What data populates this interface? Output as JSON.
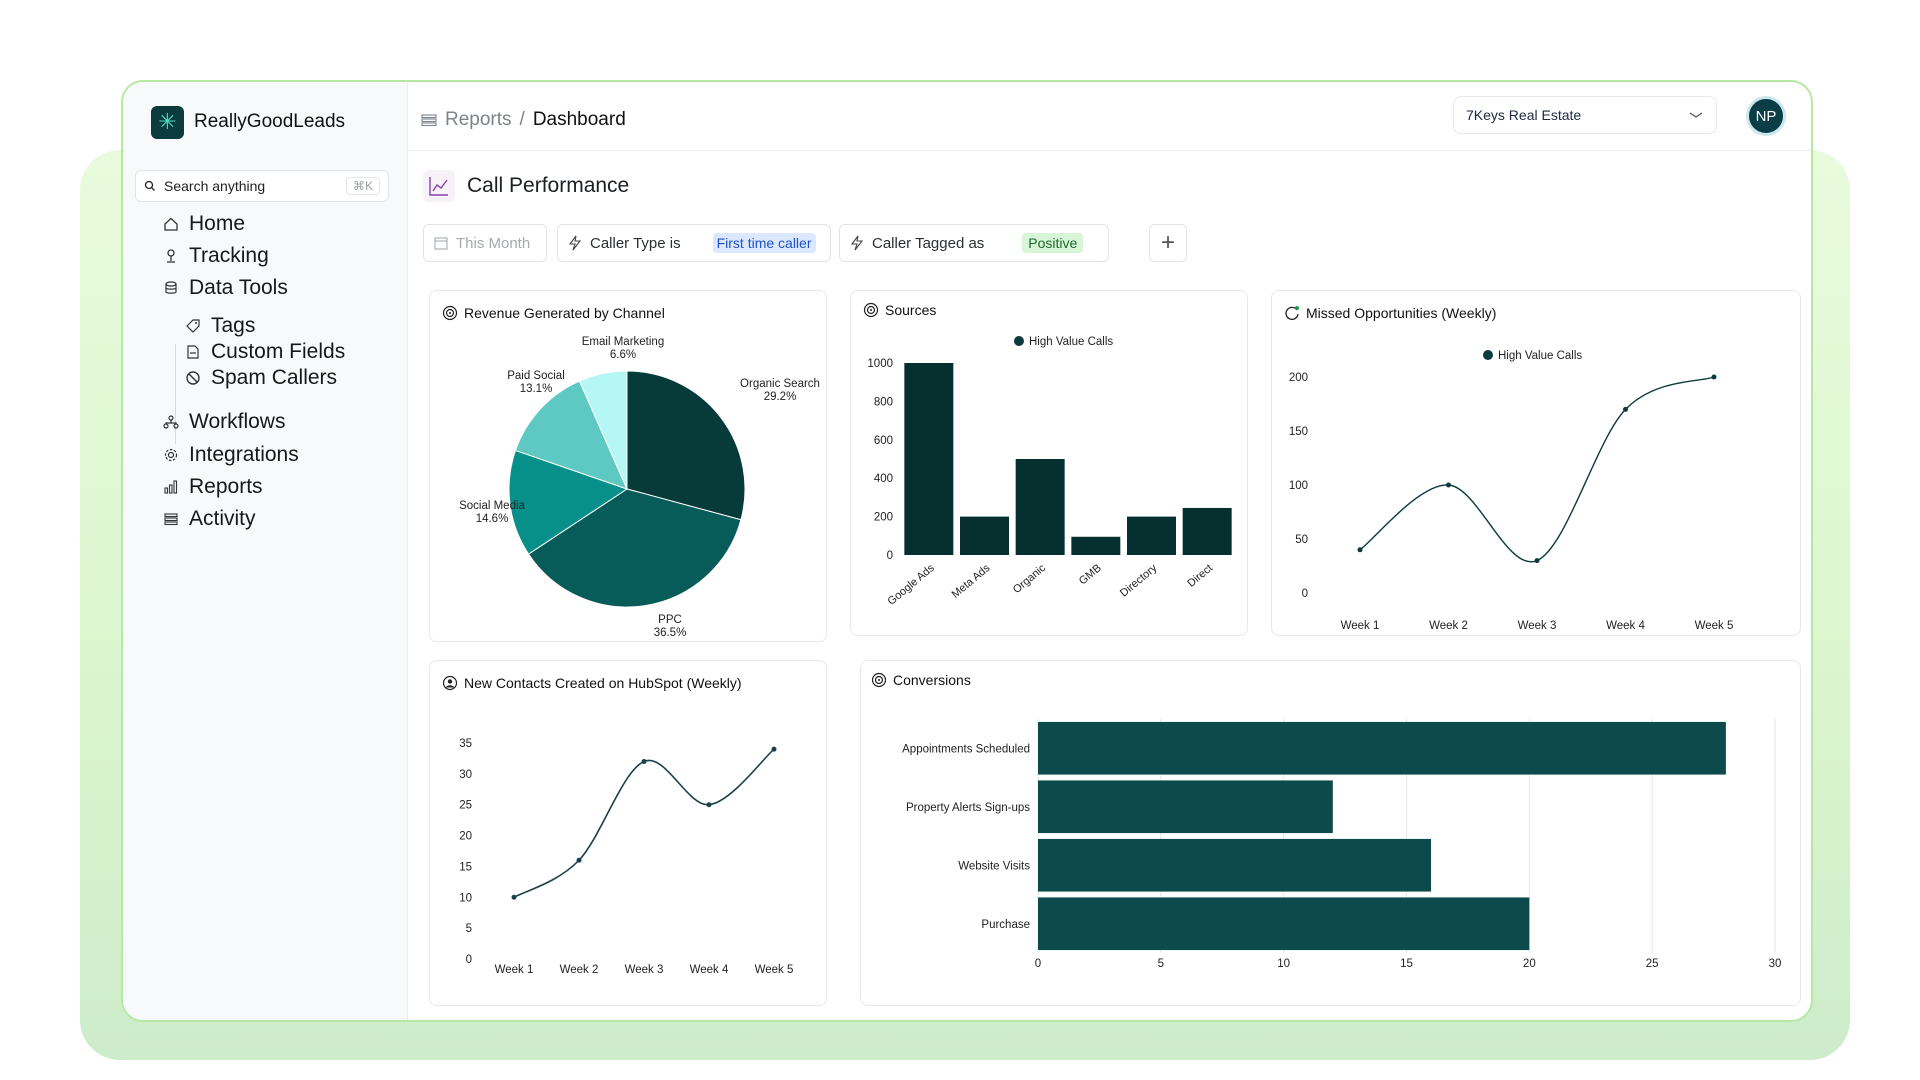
{
  "brand": {
    "name": "ReallyGoodLeads"
  },
  "search": {
    "placeholder": "Search anything",
    "shortcut": "⌘K"
  },
  "nav": {
    "items": [
      {
        "label": "Home",
        "icon": "home-icon"
      },
      {
        "label": "Tracking",
        "icon": "tracking-icon"
      },
      {
        "label": "Data Tools",
        "icon": "database-icon"
      },
      {
        "label": "Workflows",
        "icon": "workflow-icon"
      },
      {
        "label": "Integrations",
        "icon": "gear-icon"
      },
      {
        "label": "Reports",
        "icon": "bar-chart-icon"
      },
      {
        "label": "Activity",
        "icon": "list-icon"
      }
    ],
    "data_tools_children": [
      {
        "label": "Tags",
        "icon": "tag-icon"
      },
      {
        "label": "Custom Fields",
        "icon": "document-icon"
      },
      {
        "label": "Spam Callers",
        "icon": "block-icon"
      }
    ]
  },
  "header": {
    "breadcrumb_parent": "Reports",
    "breadcrumb_separator": "/",
    "breadcrumb_current": "Dashboard",
    "company": "7Keys Real Estate",
    "avatar_initials": "NP"
  },
  "page": {
    "title": "Call Performance"
  },
  "filters": {
    "date": "This Month",
    "caller_type_label": "Caller Type is",
    "caller_type_value": "First time caller",
    "caller_tag_label": "Caller Tagged as",
    "caller_tag_value": "Positive",
    "add_icon": "plus-icon"
  },
  "colors": {
    "primary": "#0d4a4b",
    "accent": "#0b3b3c",
    "border": "#b6e8a3"
  },
  "chart_data": [
    {
      "type": "pie",
      "title": "Revenue Generated by Channel",
      "slices": [
        {
          "label": "Organic Search",
          "value": 29.2,
          "value_label": "29.2%",
          "color": "#073b3a"
        },
        {
          "label": "PPC",
          "value": 36.5,
          "value_label": "36.5%",
          "color": "#075b58"
        },
        {
          "label": "Social Media",
          "value": 14.6,
          "value_label": "14.6%",
          "color": "#079089"
        },
        {
          "label": "Paid Social",
          "value": 13.1,
          "value_label": "13.1%",
          "color": "#5ec9c2"
        },
        {
          "label": "Email Marketing",
          "value": 6.6,
          "value_label": "6.6%",
          "color": "#b5f7f5"
        }
      ]
    },
    {
      "type": "bar",
      "title": "Sources",
      "legend": "High Value Calls",
      "categories": [
        "Google Ads",
        "Meta Ads",
        "Organic",
        "GMB",
        "Directory",
        "Direct"
      ],
      "values": [
        1000,
        200,
        500,
        95,
        200,
        245
      ],
      "ylim": [
        0,
        1000
      ],
      "yticks": [
        0,
        200,
        400,
        600,
        800,
        1000
      ],
      "grid": false
    },
    {
      "type": "line",
      "title": "Missed Opportunities (Weekly)",
      "legend": "High Value Calls",
      "categories": [
        "Week 1",
        "Week 2",
        "Week 3",
        "Week 4",
        "Week 5"
      ],
      "values": [
        40,
        100,
        30,
        170,
        200
      ],
      "ylim": [
        0,
        200
      ],
      "yticks": [
        0,
        50,
        100,
        150,
        200
      ]
    },
    {
      "type": "line",
      "title": "New Contacts Created on HubSpot (Weekly)",
      "categories": [
        "Week 1",
        "Week 2",
        "Week 3",
        "Week 4",
        "Week 5"
      ],
      "values": [
        10,
        16,
        32,
        25,
        34
      ],
      "ylim": [
        0,
        35
      ],
      "yticks": [
        0,
        5,
        10,
        15,
        20,
        25,
        30,
        35
      ]
    },
    {
      "type": "bar",
      "orientation": "horizontal",
      "title": "Conversions",
      "categories": [
        "Appointments Scheduled",
        "Property Alerts Sign-ups",
        "Website Visits",
        "Purchase"
      ],
      "values": [
        28,
        12,
        16,
        20
      ],
      "xlim": [
        0,
        30
      ],
      "xticks": [
        0,
        5,
        10,
        15,
        20,
        25,
        30
      ],
      "grid": true
    }
  ]
}
